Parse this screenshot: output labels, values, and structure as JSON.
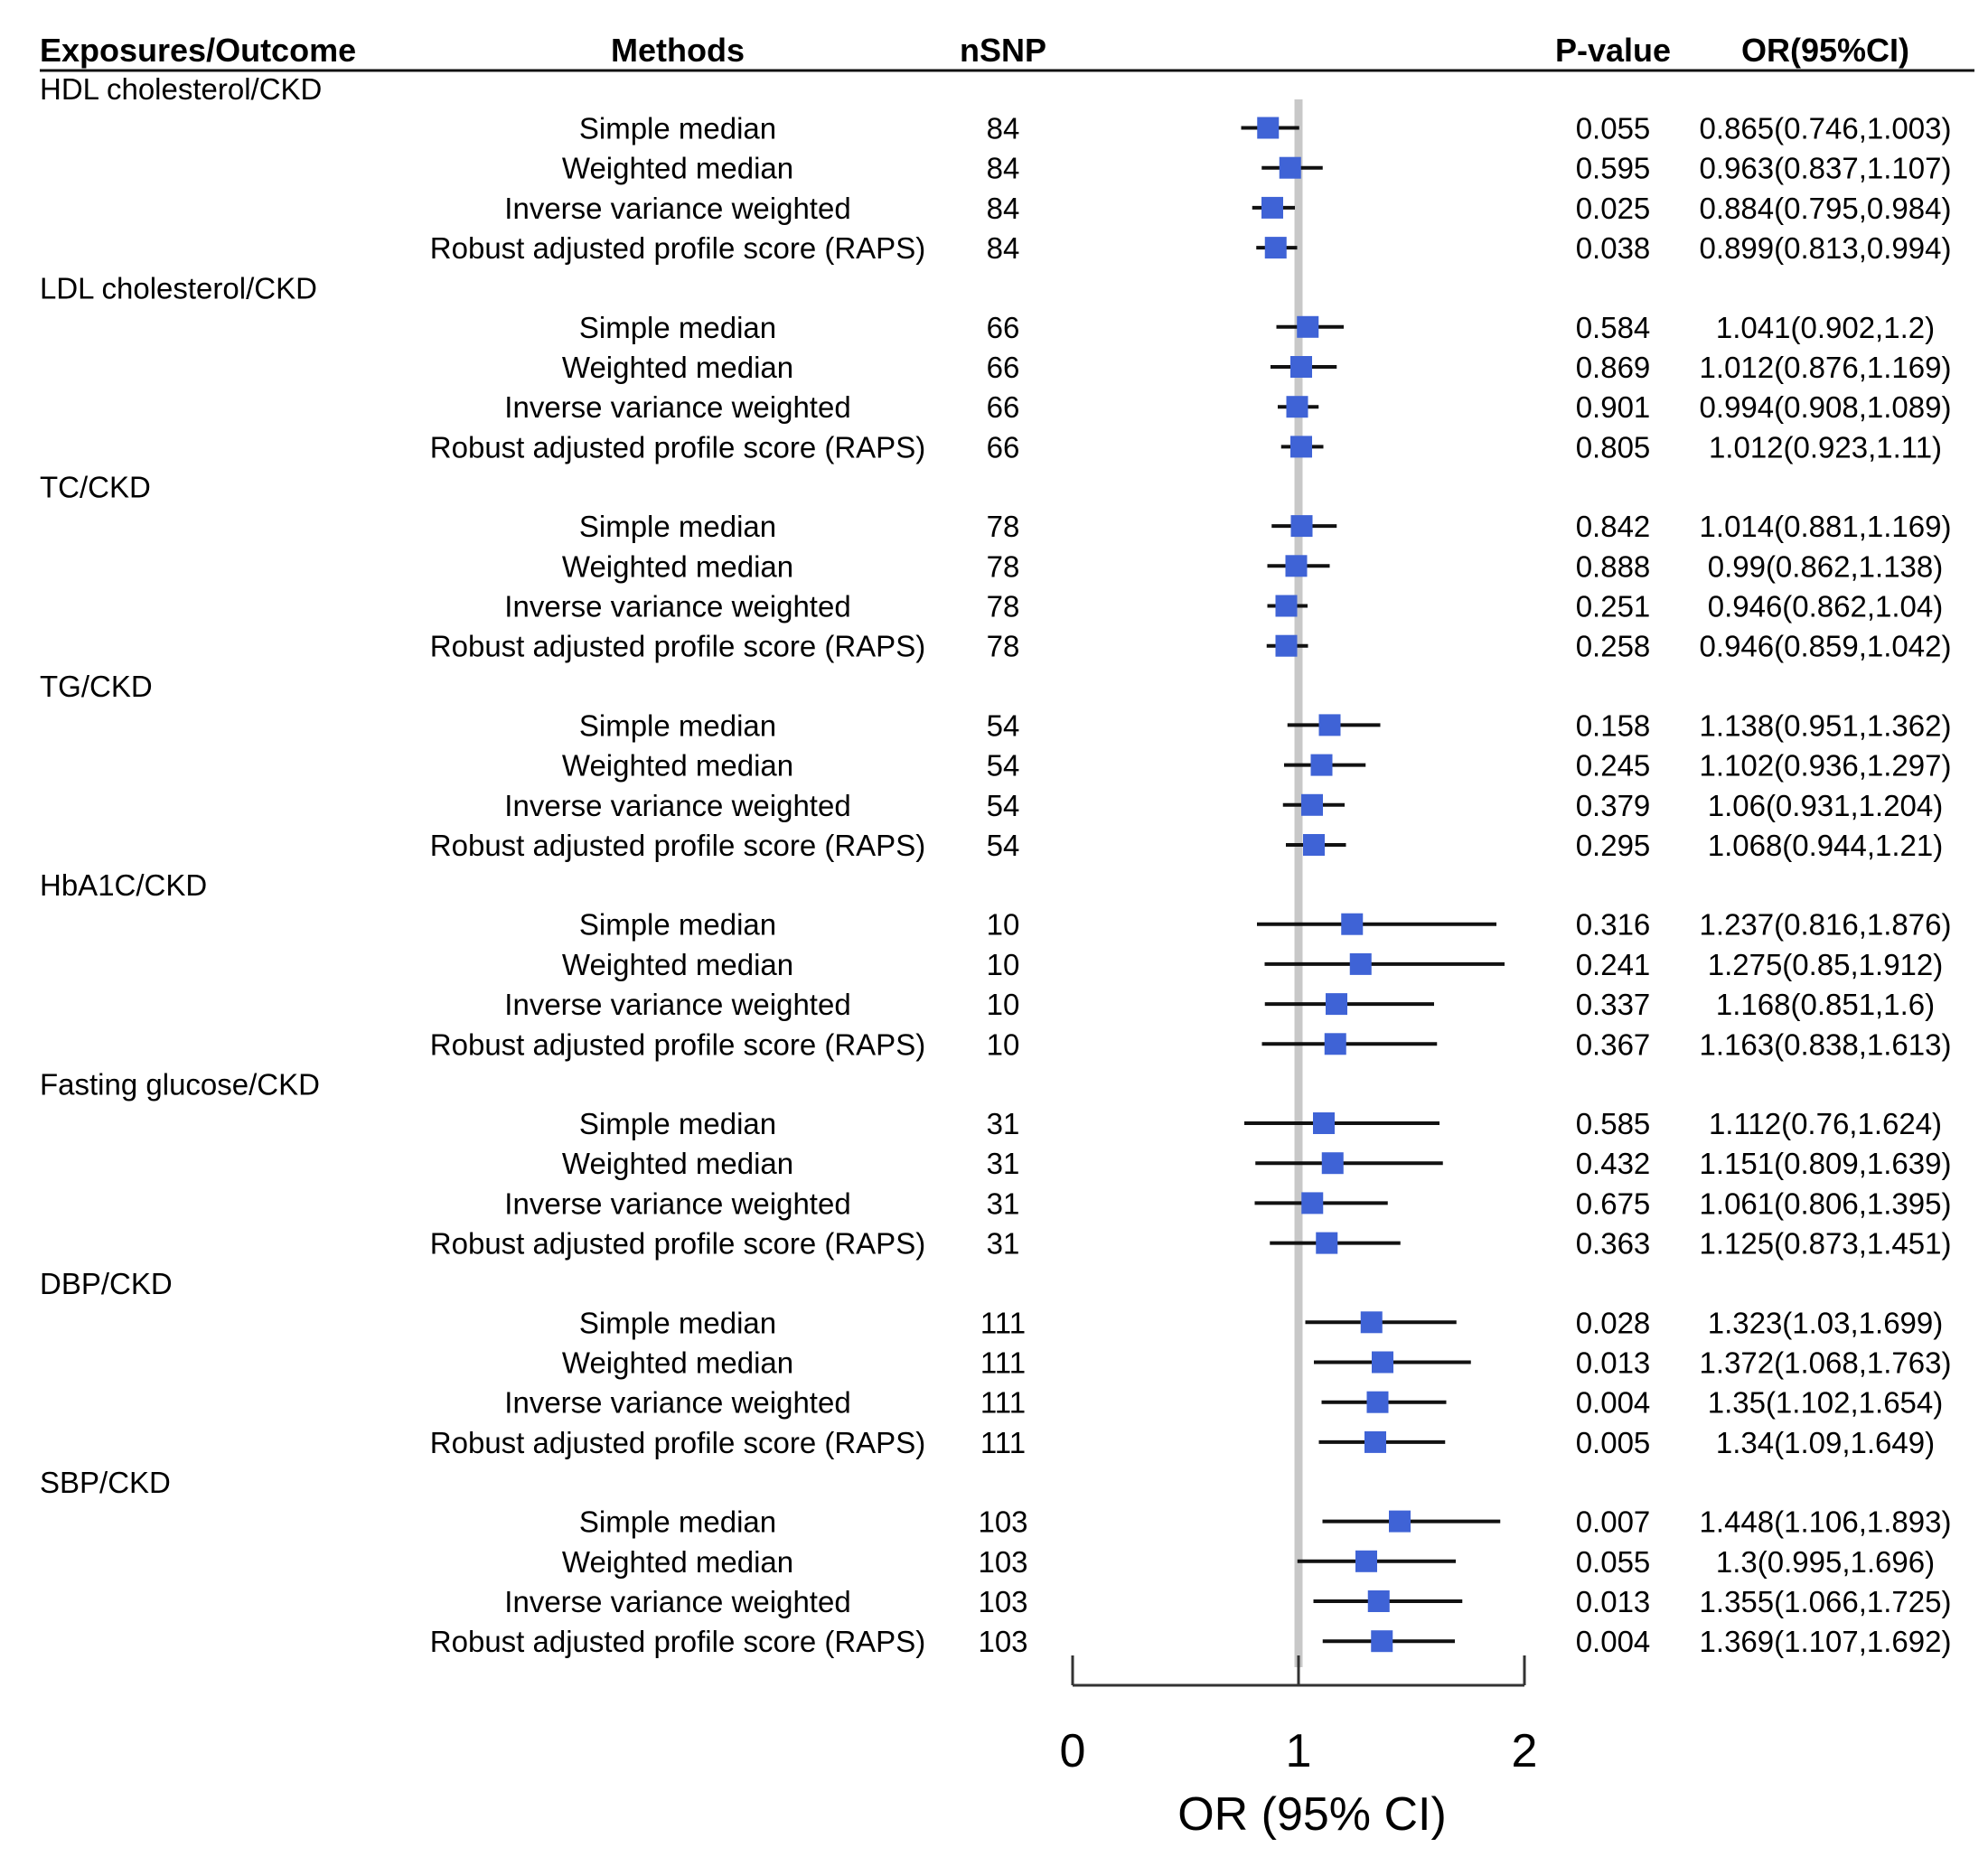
{
  "chart_data": {
    "type": "forest",
    "title": "",
    "xlabel": "OR (95% CI)",
    "xlim": [
      0,
      2
    ],
    "xticks": [
      "0",
      "1",
      "2"
    ],
    "reference_line": 1,
    "columns": {
      "exposure": "Exposures/Outcome",
      "method": "Methods",
      "nsnp": "nSNP",
      "pvalue": "P-value",
      "or": "OR(95%CI)"
    },
    "groups": [
      {
        "name": "HDL cholesterol/CKD",
        "rows": [
          {
            "method": "Simple median",
            "nsnp": "84",
            "p": "0.055",
            "or_text": "0.865(0.746,1.003)",
            "or": 0.865,
            "lo": 0.746,
            "hi": 1.003
          },
          {
            "method": "Weighted median",
            "nsnp": "84",
            "p": "0.595",
            "or_text": "0.963(0.837,1.107)",
            "or": 0.963,
            "lo": 0.837,
            "hi": 1.107
          },
          {
            "method": "Inverse variance weighted",
            "nsnp": "84",
            "p": "0.025",
            "or_text": "0.884(0.795,0.984)",
            "or": 0.884,
            "lo": 0.795,
            "hi": 0.984
          },
          {
            "method": "Robust adjusted profile score (RAPS)",
            "nsnp": "84",
            "p": "0.038",
            "or_text": "0.899(0.813,0.994)",
            "or": 0.899,
            "lo": 0.813,
            "hi": 0.994
          }
        ]
      },
      {
        "name": "LDL cholesterol/CKD",
        "rows": [
          {
            "method": "Simple median",
            "nsnp": "66",
            "p": "0.584",
            "or_text": "1.041(0.902,1.2)",
            "or": 1.041,
            "lo": 0.902,
            "hi": 1.2
          },
          {
            "method": "Weighted median",
            "nsnp": "66",
            "p": "0.869",
            "or_text": "1.012(0.876,1.169)",
            "or": 1.012,
            "lo": 0.876,
            "hi": 1.169
          },
          {
            "method": "Inverse variance weighted",
            "nsnp": "66",
            "p": "0.901",
            "or_text": "0.994(0.908,1.089)",
            "or": 0.994,
            "lo": 0.908,
            "hi": 1.089
          },
          {
            "method": "Robust adjusted profile score (RAPS)",
            "nsnp": "66",
            "p": "0.805",
            "or_text": "1.012(0.923,1.11)",
            "or": 1.012,
            "lo": 0.923,
            "hi": 1.11
          }
        ]
      },
      {
        "name": "TC/CKD",
        "rows": [
          {
            "method": "Simple median",
            "nsnp": "78",
            "p": "0.842",
            "or_text": "1.014(0.881,1.169)",
            "or": 1.014,
            "lo": 0.881,
            "hi": 1.169
          },
          {
            "method": "Weighted median",
            "nsnp": "78",
            "p": "0.888",
            "or_text": "0.99(0.862,1.138)",
            "or": 0.99,
            "lo": 0.862,
            "hi": 1.138
          },
          {
            "method": "Inverse variance weighted",
            "nsnp": "78",
            "p": "0.251",
            "or_text": "0.946(0.862,1.04)",
            "or": 0.946,
            "lo": 0.862,
            "hi": 1.04
          },
          {
            "method": "Robust adjusted profile score (RAPS)",
            "nsnp": "78",
            "p": "0.258",
            "or_text": "0.946(0.859,1.042)",
            "or": 0.946,
            "lo": 0.859,
            "hi": 1.042
          }
        ]
      },
      {
        "name": "TG/CKD",
        "rows": [
          {
            "method": "Simple median",
            "nsnp": "54",
            "p": "0.158",
            "or_text": "1.138(0.951,1.362)",
            "or": 1.138,
            "lo": 0.951,
            "hi": 1.362
          },
          {
            "method": "Weighted median",
            "nsnp": "54",
            "p": "0.245",
            "or_text": "1.102(0.936,1.297)",
            "or": 1.102,
            "lo": 0.936,
            "hi": 1.297
          },
          {
            "method": "Inverse variance weighted",
            "nsnp": "54",
            "p": "0.379",
            "or_text": "1.06(0.931,1.204)",
            "or": 1.06,
            "lo": 0.931,
            "hi": 1.204
          },
          {
            "method": "Robust adjusted profile score (RAPS)",
            "nsnp": "54",
            "p": "0.295",
            "or_text": "1.068(0.944,1.21)",
            "or": 1.068,
            "lo": 0.944,
            "hi": 1.21
          }
        ]
      },
      {
        "name": "HbA1C/CKD",
        "rows": [
          {
            "method": "Simple median",
            "nsnp": "10",
            "p": "0.316",
            "or_text": "1.237(0.816,1.876)",
            "or": 1.237,
            "lo": 0.816,
            "hi": 1.876
          },
          {
            "method": "Weighted median",
            "nsnp": "10",
            "p": "0.241",
            "or_text": "1.275(0.85,1.912)",
            "or": 1.275,
            "lo": 0.85,
            "hi": 1.912
          },
          {
            "method": "Inverse variance weighted",
            "nsnp": "10",
            "p": "0.337",
            "or_text": "1.168(0.851,1.6)",
            "or": 1.168,
            "lo": 0.851,
            "hi": 1.6
          },
          {
            "method": "Robust adjusted profile score (RAPS)",
            "nsnp": "10",
            "p": "0.367",
            "or_text": "1.163(0.838,1.613)",
            "or": 1.163,
            "lo": 0.838,
            "hi": 1.613
          }
        ]
      },
      {
        "name": "Fasting glucose/CKD",
        "rows": [
          {
            "method": "Simple median",
            "nsnp": "31",
            "p": "0.585",
            "or_text": "1.112(0.76,1.624)",
            "or": 1.112,
            "lo": 0.76,
            "hi": 1.624
          },
          {
            "method": "Weighted median",
            "nsnp": "31",
            "p": "0.432",
            "or_text": "1.151(0.809,1.639)",
            "or": 1.151,
            "lo": 0.809,
            "hi": 1.639
          },
          {
            "method": "Inverse variance weighted",
            "nsnp": "31",
            "p": "0.675",
            "or_text": "1.061(0.806,1.395)",
            "or": 1.061,
            "lo": 0.806,
            "hi": 1.395
          },
          {
            "method": "Robust adjusted profile score (RAPS)",
            "nsnp": "31",
            "p": "0.363",
            "or_text": "1.125(0.873,1.451)",
            "or": 1.125,
            "lo": 0.873,
            "hi": 1.451
          }
        ]
      },
      {
        "name": "DBP/CKD",
        "rows": [
          {
            "method": "Simple median",
            "nsnp": "111",
            "p": "0.028",
            "or_text": "1.323(1.03,1.699)",
            "or": 1.323,
            "lo": 1.03,
            "hi": 1.699
          },
          {
            "method": "Weighted median",
            "nsnp": "111",
            "p": "0.013",
            "or_text": "1.372(1.068,1.763)",
            "or": 1.372,
            "lo": 1.068,
            "hi": 1.763
          },
          {
            "method": "Inverse variance weighted",
            "nsnp": "111",
            "p": "0.004",
            "or_text": "1.35(1.102,1.654)",
            "or": 1.35,
            "lo": 1.102,
            "hi": 1.654
          },
          {
            "method": "Robust adjusted profile score (RAPS)",
            "nsnp": "111",
            "p": "0.005",
            "or_text": "1.34(1.09,1.649)",
            "or": 1.34,
            "lo": 1.09,
            "hi": 1.649
          }
        ]
      },
      {
        "name": "SBP/CKD",
        "rows": [
          {
            "method": "Simple median",
            "nsnp": "103",
            "p": "0.007",
            "or_text": "1.448(1.106,1.893)",
            "or": 1.448,
            "lo": 1.106,
            "hi": 1.893
          },
          {
            "method": "Weighted median",
            "nsnp": "103",
            "p": "0.055",
            "or_text": "1.3(0.995,1.696)",
            "or": 1.3,
            "lo": 0.995,
            "hi": 1.696
          },
          {
            "method": "Inverse variance weighted",
            "nsnp": "103",
            "p": "0.013",
            "or_text": "1.355(1.066,1.725)",
            "or": 1.355,
            "lo": 1.066,
            "hi": 1.725
          },
          {
            "method": "Robust adjusted profile score (RAPS)",
            "nsnp": "103",
            "p": "0.004",
            "or_text": "1.369(1.107,1.692)",
            "or": 1.369,
            "lo": 1.107,
            "hi": 1.692
          }
        ]
      }
    ]
  },
  "colors": {
    "marker": "#3f63d6",
    "ci_line": "#111111",
    "reference_line": "#c8c8c8",
    "text": "#1a1a1a",
    "axis": "#333333"
  }
}
